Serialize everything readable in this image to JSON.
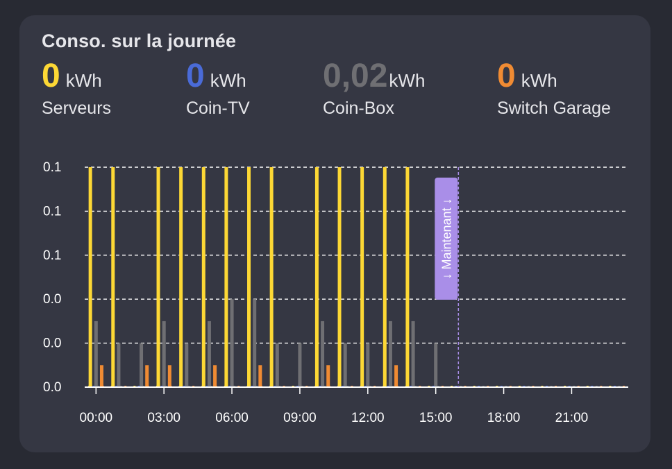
{
  "card": {
    "title": "Conso. sur la journée"
  },
  "stats": [
    {
      "value": "0",
      "unit": "kWh",
      "label": "Serveurs",
      "color": "#fdd835"
    },
    {
      "value": "0",
      "unit": "kWh",
      "label": "Coin-TV",
      "color": "#4a6bd8"
    },
    {
      "value": "0,02",
      "unit": "kWh",
      "label": "Coin-Box",
      "color": "#6f6f73"
    },
    {
      "value": "0",
      "unit": "kWh",
      "label": "Switch Garage",
      "color": "#f08b33"
    }
  ],
  "chart_data": {
    "type": "bar",
    "y_tick_labels": [
      "0.0",
      "0.0",
      "0.0",
      "0.1",
      "0.1",
      "0.1"
    ],
    "x_tick_labels": [
      "00:00",
      "03:00",
      "06:00",
      "09:00",
      "12:00",
      "15:00",
      "18:00",
      "21:00"
    ],
    "ylim": [
      0,
      0.1
    ],
    "xlim_hours": [
      -0.5,
      23.5
    ],
    "grid": true,
    "now_label": "↓ Maintenant ↓",
    "now_hour": 16,
    "series": [
      {
        "color": "#fdd835",
        "points": [
          [
            -0.25,
            0.1
          ],
          [
            0.75,
            0.1
          ],
          [
            2.75,
            0.1
          ],
          [
            3.75,
            0.1
          ],
          [
            4.75,
            0.1
          ],
          [
            5.75,
            0.1
          ],
          [
            6.75,
            0.1
          ],
          [
            7.75,
            0.1
          ],
          [
            9.75,
            0.1
          ],
          [
            10.75,
            0.1
          ],
          [
            11.75,
            0.1
          ],
          [
            12.75,
            0.1
          ],
          [
            13.75,
            0.1
          ]
        ]
      },
      {
        "color": "#4a6bd8",
        "points": []
      },
      {
        "color": "#6f6f73",
        "points": [
          [
            0,
            0.03
          ],
          [
            1,
            0.02
          ],
          [
            2,
            0.02
          ],
          [
            3,
            0.03
          ],
          [
            4,
            0.02
          ],
          [
            5,
            0.03
          ],
          [
            6,
            0.04
          ],
          [
            7,
            0.04
          ],
          [
            8,
            0.02
          ],
          [
            9,
            0.02
          ],
          [
            10,
            0.03
          ],
          [
            11,
            0.02
          ],
          [
            12,
            0.02
          ],
          [
            13,
            0.03
          ],
          [
            14,
            0.03
          ],
          [
            15,
            0.02
          ]
        ]
      },
      {
        "color": "#f08b33",
        "points": [
          [
            0.25,
            0.01
          ],
          [
            2.25,
            0.01
          ],
          [
            3.25,
            0.01
          ],
          [
            5.25,
            0.01
          ],
          [
            7.25,
            0.01
          ],
          [
            10.25,
            0.01
          ],
          [
            13.25,
            0.01
          ]
        ]
      }
    ]
  }
}
